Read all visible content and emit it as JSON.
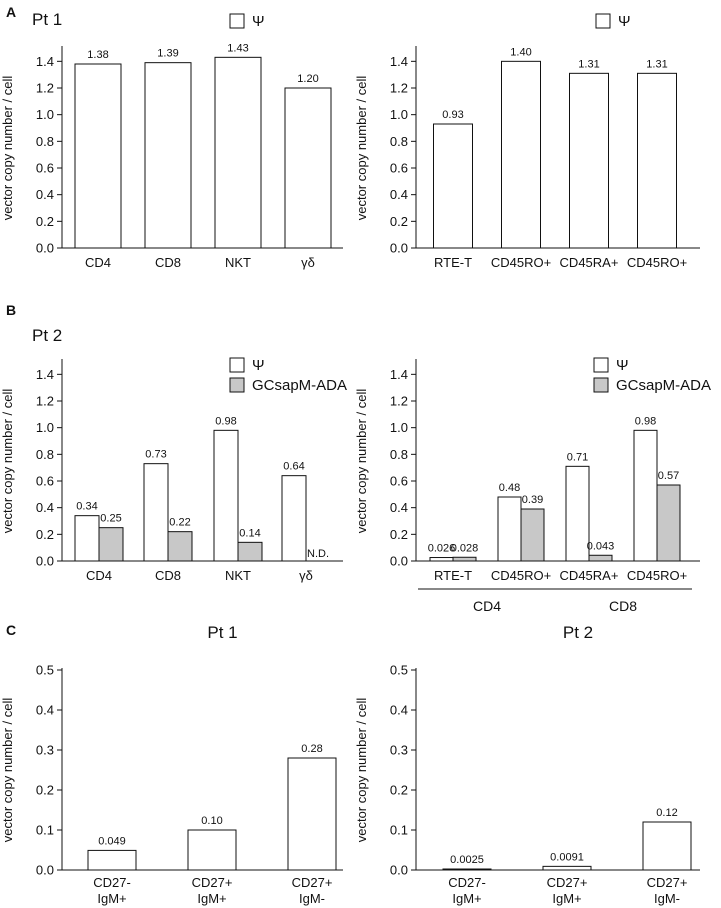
{
  "panels": {
    "A": {
      "letter": "A",
      "pt": "Pt 1"
    },
    "B": {
      "letter": "B",
      "pt": "Pt 2"
    },
    "C": {
      "letter": "C"
    }
  },
  "colors": {
    "psi": "#ffffff",
    "gcsap": "#c8c8c8",
    "stroke": "#111111"
  },
  "chart_data": [
    {
      "id": "A-left",
      "type": "bar",
      "title": "",
      "ylabel": "vector copy number / cell",
      "ylim": [
        0,
        1.5
      ],
      "yticks": [
        0.0,
        0.2,
        0.4,
        0.6,
        0.8,
        1.0,
        1.2,
        1.4
      ],
      "categories": [
        "CD4",
        "CD8",
        "NKT",
        "γδ"
      ],
      "legend": [
        "Ψ"
      ],
      "series": [
        {
          "name": "Ψ",
          "values": [
            1.38,
            1.39,
            1.43,
            1.2
          ],
          "labels": [
            "1.38",
            "1.39",
            "1.43",
            "1.20"
          ]
        }
      ]
    },
    {
      "id": "A-right",
      "type": "bar",
      "title": "",
      "ylabel": "vector copy number / cell",
      "ylim": [
        0,
        1.5
      ],
      "yticks": [
        0.0,
        0.2,
        0.4,
        0.6,
        0.8,
        1.0,
        1.2,
        1.4
      ],
      "categories": [
        "RTE-T",
        "CD45RO+",
        "CD45RA+",
        "CD45RO+"
      ],
      "legend": [
        "Ψ"
      ],
      "series": [
        {
          "name": "Ψ",
          "values": [
            0.93,
            1.4,
            1.31,
            1.31
          ],
          "labels": [
            "0.93",
            "1.40",
            "1.31",
            "1.31"
          ]
        }
      ]
    },
    {
      "id": "B-left",
      "type": "bar",
      "title": "",
      "ylabel": "vector copy number / cell",
      "ylim": [
        0,
        1.5
      ],
      "yticks": [
        0.0,
        0.2,
        0.4,
        0.6,
        0.8,
        1.0,
        1.2,
        1.4
      ],
      "categories": [
        "CD4",
        "CD8",
        "NKT",
        "γδ"
      ],
      "legend": [
        "Ψ",
        "GCsapM-ADA"
      ],
      "series": [
        {
          "name": "Ψ",
          "values": [
            0.34,
            0.73,
            0.98,
            0.64
          ],
          "labels": [
            "0.34",
            "0.73",
            "0.98",
            "0.64"
          ]
        },
        {
          "name": "GCsapM-ADA",
          "values": [
            0.25,
            0.22,
            0.14,
            null
          ],
          "labels": [
            "0.25",
            "0.22",
            "0.14",
            "N.D."
          ]
        }
      ]
    },
    {
      "id": "B-right",
      "type": "bar",
      "title": "",
      "ylabel": "vector copy number / cell",
      "ylim": [
        0,
        1.5
      ],
      "yticks": [
        0.0,
        0.2,
        0.4,
        0.6,
        0.8,
        1.0,
        1.2,
        1.4
      ],
      "categories": [
        "RTE-T",
        "CD45RO+",
        "CD45RA+",
        "CD45RO+"
      ],
      "groups": [
        {
          "label": "CD4",
          "span": [
            0,
            1
          ]
        },
        {
          "label": "CD8",
          "span": [
            2,
            3
          ]
        }
      ],
      "legend": [
        "Ψ",
        "GCsapM-ADA"
      ],
      "series": [
        {
          "name": "Ψ",
          "values": [
            0.026,
            0.48,
            0.71,
            0.98
          ],
          "labels": [
            "0.026",
            "0.48",
            "0.71",
            "0.98"
          ]
        },
        {
          "name": "GCsapM-ADA",
          "values": [
            0.028,
            0.39,
            0.043,
            0.57
          ],
          "labels": [
            "0.028",
            "0.39",
            "0.043",
            "0.57"
          ]
        }
      ]
    },
    {
      "id": "C-left",
      "type": "bar",
      "title": "Pt 1",
      "ylabel": "vector copy number / cell",
      "ylim": [
        0,
        0.5
      ],
      "yticks": [
        0.0,
        0.1,
        0.2,
        0.3,
        0.4,
        0.5
      ],
      "categories": [
        [
          "CD27-",
          "IgM+"
        ],
        [
          "CD27+",
          "IgM+"
        ],
        [
          "CD27+",
          "IgM-"
        ]
      ],
      "series": [
        {
          "values": [
            0.049,
            0.1,
            0.28
          ],
          "labels": [
            "0.049",
            "0.10",
            "0.28"
          ]
        }
      ]
    },
    {
      "id": "C-right",
      "type": "bar",
      "title": "Pt 2",
      "ylabel": "vector copy number / cell",
      "ylim": [
        0,
        0.5
      ],
      "yticks": [
        0.0,
        0.1,
        0.2,
        0.3,
        0.4,
        0.5
      ],
      "categories": [
        [
          "CD27-",
          "IgM+"
        ],
        [
          "CD27+",
          "IgM+"
        ],
        [
          "CD27+",
          "IgM-"
        ]
      ],
      "series": [
        {
          "values": [
            0.0025,
            0.0091,
            0.12
          ],
          "labels": [
            "0.0025",
            "0.0091",
            "0.12"
          ]
        }
      ]
    }
  ]
}
